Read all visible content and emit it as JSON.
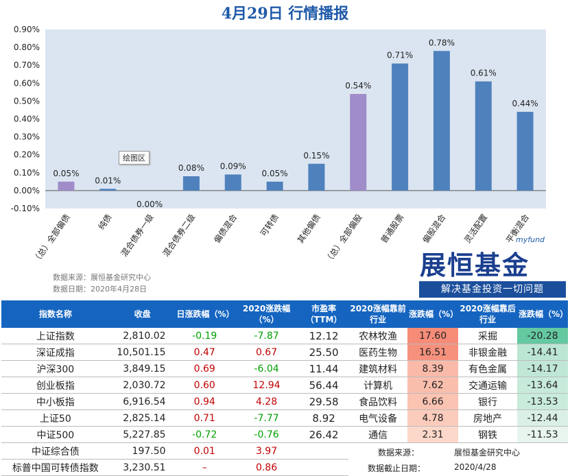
{
  "title": "4月29日  行情播报",
  "chart_data": {
    "type": "bar",
    "categories": [
      "（总）全部偏债",
      "纯债",
      "混合债券一级",
      "混合债券二级",
      "偏债混合",
      "可转债",
      "其他偏债",
      "（总）全部偏股",
      "普通股票",
      "偏股混合",
      "灵活配置",
      "平衡混合"
    ],
    "values": [
      0.05,
      0.01,
      0.0,
      0.08,
      0.09,
      0.05,
      0.15,
      0.54,
      0.71,
      0.78,
      0.61,
      0.44
    ],
    "value_labels": [
      "0.05%",
      "0.01%",
      "0.00%",
      "0.08%",
      "0.09%",
      "0.05%",
      "0.15%",
      "0.54%",
      "0.71%",
      "0.78%",
      "0.61%",
      "0.44%"
    ],
    "yticks": [
      "-0.10%",
      "0.00%",
      "0.10%",
      "0.20%",
      "0.30%",
      "0.40%",
      "0.50%",
      "0.60%",
      "0.70%",
      "0.80%",
      "0.90%"
    ],
    "ylim": [
      -0.1,
      0.9
    ],
    "highlight_categories": [
      "（总）全部偏债",
      "（总）全部偏股"
    ],
    "colors": {
      "bar": "#4f81bd",
      "highlight": "#a08cc8",
      "plot_bg": "#dbe5f1"
    },
    "grid": false
  },
  "tooltip": "绘图区",
  "source": {
    "line1": "数据来源：展恒基金研究中心",
    "line2": "数据日期：2020年4月28日"
  },
  "logo": {
    "sub": "myfund",
    "main": "展恒基金",
    "slogan": "解决基金投资一切问题"
  },
  "table_indices": {
    "headers": [
      "指数名称",
      "收盘",
      "日涨跌幅（%）",
      "2020涨跌幅（%）",
      "市盈率（TTM）"
    ],
    "rows": [
      {
        "name": "上证指数",
        "close": "2,810.02",
        "day": "-0.19",
        "ytd": "-7.87",
        "pe": "12.12"
      },
      {
        "name": "深证成指",
        "close": "10,501.15",
        "day": "0.47",
        "ytd": "0.67",
        "pe": "25.50"
      },
      {
        "name": "沪深300",
        "close": "3,849.15",
        "day": "0.69",
        "ytd": "-6.04",
        "pe": "11.44"
      },
      {
        "name": "创业板指",
        "close": "2,030.72",
        "day": "0.60",
        "ytd": "12.94",
        "pe": "56.44"
      },
      {
        "name": "中小板指",
        "close": "6,916.54",
        "day": "0.94",
        "ytd": "4.28",
        "pe": "29.58"
      },
      {
        "name": "上证50",
        "close": "2,825.14",
        "day": "0.71",
        "ytd": "-7.77",
        "pe": "8.92"
      },
      {
        "name": "中证500",
        "close": "5,227.85",
        "day": "-0.72",
        "ytd": "-0.76",
        "pe": "26.42"
      },
      {
        "name": "中证综合债",
        "close": "197.50",
        "day": "0.01",
        "ytd": "3.97",
        "pe": ""
      },
      {
        "name": "标普中国可转债指数",
        "close": "3,230.51",
        "day": "–",
        "ytd": "0.86",
        "pe": ""
      }
    ]
  },
  "table_industries": {
    "headers": [
      "2020涨幅靠前行业",
      "涨跌幅（%）",
      "2020涨幅靠后行业",
      "涨跌幅（%）"
    ],
    "rows": [
      {
        "top": "农林牧渔",
        "top_val": "17.60",
        "bottom": "采掘",
        "bottom_val": "-20.28"
      },
      {
        "top": "医药生物",
        "top_val": "16.51",
        "bottom": "非银金融",
        "bottom_val": "-14.41"
      },
      {
        "top": "建筑材料",
        "top_val": "8.39",
        "bottom": "有色金属",
        "bottom_val": "-14.17"
      },
      {
        "top": "计算机",
        "top_val": "7.62",
        "bottom": "交通运输",
        "bottom_val": "-13.64"
      },
      {
        "top": "食品饮料",
        "top_val": "6.66",
        "bottom": "银行",
        "bottom_val": "-13.53"
      },
      {
        "top": "电气设备",
        "top_val": "4.78",
        "bottom": "房地产",
        "bottom_val": "-12.44"
      },
      {
        "top": "通信",
        "top_val": "2.31",
        "bottom": "钢铁",
        "bottom_val": "-11.53"
      }
    ],
    "footer_source_label": "数据来源：",
    "footer_source_value": "展恒基金研究中心",
    "footer_date_label": "数据截止日期：",
    "footer_date_value": "2020/4/28"
  }
}
